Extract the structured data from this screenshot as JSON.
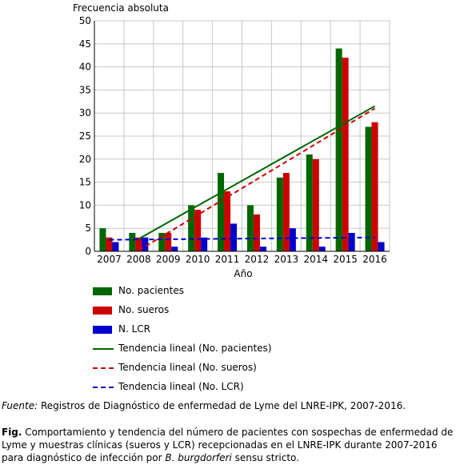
{
  "chart_data": {
    "type": "bar",
    "ylabel": "Frecuencia absoluta",
    "xlabel": "Año",
    "categories": [
      "2007",
      "2008",
      "2009",
      "2010",
      "2011",
      "2012",
      "2013",
      "2014",
      "2015",
      "2016"
    ],
    "yticks": [
      0,
      5,
      10,
      15,
      20,
      25,
      30,
      35,
      40,
      45,
      50
    ],
    "ylim": [
      0,
      50
    ],
    "grid": "horizontal",
    "legend_position": "bottom",
    "series": [
      {
        "name": "No. pacientes",
        "type": "bar",
        "color": "#006600",
        "values": [
          5,
          4,
          4,
          10,
          17,
          10,
          16,
          21,
          44,
          27
        ]
      },
      {
        "name": "No. sueros",
        "type": "bar",
        "color": "#cc0000",
        "values": [
          3,
          3,
          4,
          9,
          13,
          8,
          17,
          20,
          42,
          28
        ]
      },
      {
        "name": "N. LCR",
        "type": "bar",
        "color": "#0000cc",
        "values": [
          2,
          3,
          1,
          3,
          6,
          1,
          5,
          1,
          4,
          2
        ]
      }
    ],
    "trendlines": [
      {
        "name": "Tendencia lineal (No. pacientes)",
        "color": "#006600",
        "dash": "solid",
        "x": [
          "2008",
          "2016"
        ],
        "y": [
          2.7,
          31.5
        ]
      },
      {
        "name": "Tendencia lineal (No. sueros)",
        "color": "#cc0000",
        "dash": "dashed",
        "x": [
          "2008",
          "2016"
        ],
        "y": [
          0.2,
          31.0
        ]
      },
      {
        "name": "Tendencia lineal (No. LCR)",
        "color": "#0000cc",
        "dash": "dashed",
        "x": [
          "2007",
          "2016"
        ],
        "y": [
          2.5,
          3.0
        ]
      }
    ]
  },
  "source": {
    "label": "Fuente:",
    "text": " Registros de Diagnóstico de enfermedad de Lyme del LNRE-IPK, 2007-2016."
  },
  "caption": {
    "label": "Fig.",
    "text_before": "  Comportamiento y tendencia del número de pacientes con sospechas de enfermedad de Lyme y muestras clínicas (sueros y LCR) recepcionadas en el LNRE-IPK durante 2007-2016 para diagnóstico de infección por ",
    "italic": "B. burgdorferi",
    "text_after": " sensu stricto."
  }
}
